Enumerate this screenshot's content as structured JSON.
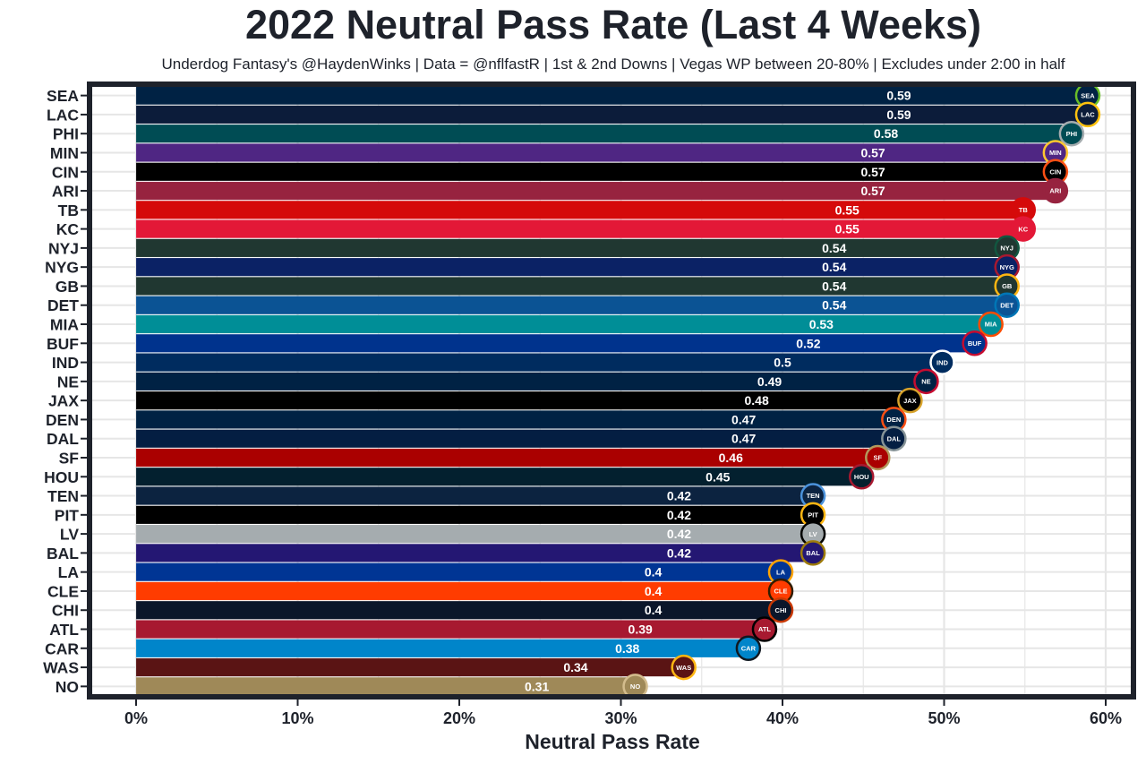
{
  "chart_data": {
    "type": "bar",
    "orientation": "horizontal",
    "title": "2022 Neutral Pass Rate (Last 4 Weeks)",
    "subtitle": "Underdog Fantasy's @HaydenWinks | Data = @nflfastR | 1st & 2nd Downs | Vegas WP between 20-80% | Excludes under 2:00 in half",
    "xlabel": "Neutral Pass Rate",
    "ylabel": "",
    "xlim": [
      0,
      0.6
    ],
    "x_ticks": [
      0,
      0.1,
      0.2,
      0.3,
      0.4,
      0.5,
      0.6
    ],
    "x_tick_labels": [
      "0%",
      "10%",
      "20%",
      "30%",
      "40%",
      "50%",
      "60%"
    ],
    "grid": true,
    "legend": "none",
    "categories": [
      "SEA",
      "LAC",
      "PHI",
      "MIN",
      "CIN",
      "ARI",
      "TB",
      "KC",
      "NYJ",
      "NYG",
      "GB",
      "DET",
      "MIA",
      "BUF",
      "IND",
      "NE",
      "JAX",
      "DEN",
      "DAL",
      "SF",
      "HOU",
      "TEN",
      "PIT",
      "LV",
      "BAL",
      "LA",
      "CLE",
      "CHI",
      "ATL",
      "CAR",
      "WAS",
      "NO"
    ],
    "values": [
      0.59,
      0.59,
      0.58,
      0.57,
      0.57,
      0.57,
      0.55,
      0.55,
      0.54,
      0.54,
      0.54,
      0.54,
      0.53,
      0.52,
      0.5,
      0.49,
      0.48,
      0.47,
      0.47,
      0.46,
      0.45,
      0.42,
      0.42,
      0.42,
      0.42,
      0.4,
      0.4,
      0.4,
      0.39,
      0.38,
      0.34,
      0.31
    ],
    "value_labels": [
      "0.59",
      "0.59",
      "0.58",
      "0.57",
      "0.57",
      "0.57",
      "0.55",
      "0.55",
      "0.54",
      "0.54",
      "0.54",
      "0.54",
      "0.53",
      "0.52",
      "0.5",
      "0.49",
      "0.48",
      "0.47",
      "0.47",
      "0.46",
      "0.45",
      "0.42",
      "0.42",
      "0.42",
      "0.42",
      "0.4",
      "0.4",
      "0.4",
      "0.39",
      "0.38",
      "0.34",
      "0.31"
    ],
    "colors": [
      "#002244",
      "#0c1c3a",
      "#004c54",
      "#4f2683",
      "#000000",
      "#97233f",
      "#d50a0a",
      "#e31837",
      "#203731",
      "#0b2265",
      "#203731",
      "#0b5394",
      "#008e97",
      "#00338d",
      "#002c5f",
      "#002244",
      "#000000",
      "#002244",
      "#041e42",
      "#aa0000",
      "#03202f",
      "#0c2340",
      "#000000",
      "#a5acaf",
      "#241773",
      "#003594",
      "#ff3c00",
      "#0b162a",
      "#a71930",
      "#0085ca",
      "#5a1414",
      "#9f8958"
    ],
    "logo_colors": [
      "#69be28",
      "#ffc20e",
      "#a5acaf",
      "#ffc62f",
      "#fb4f14",
      "#97233f",
      "#d50a0a",
      "#e31837",
      "#125740",
      "#a71930",
      "#ffb612",
      "#0076b6",
      "#fc4c02",
      "#c60c30",
      "#ffffff",
      "#c60c30",
      "#d7a22a",
      "#fb4f14",
      "#869397",
      "#b3995d",
      "#a71930",
      "#4b92db",
      "#ffb612",
      "#000000",
      "#9e7c0c",
      "#ffa300",
      "#311d00",
      "#c83803",
      "#000000",
      "#101820",
      "#ffb612",
      "#d3bc8d"
    ]
  }
}
